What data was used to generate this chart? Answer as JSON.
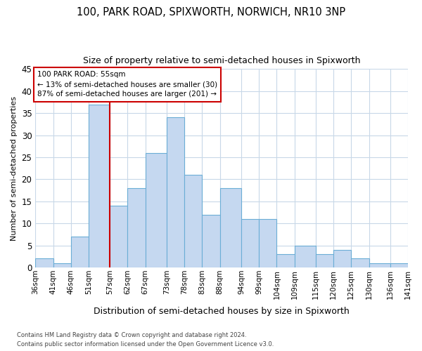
{
  "title1": "100, PARK ROAD, SPIXWORTH, NORWICH, NR10 3NP",
  "title2": "Size of property relative to semi-detached houses in Spixworth",
  "xlabel": "Distribution of semi-detached houses by size in Spixworth",
  "ylabel": "Number of semi-detached properties",
  "bin_labels": [
    "36sqm",
    "41sqm",
    "46sqm",
    "51sqm",
    "57sqm",
    "62sqm",
    "67sqm",
    "73sqm",
    "78sqm",
    "83sqm",
    "88sqm",
    "94sqm",
    "99sqm",
    "104sqm",
    "109sqm",
    "115sqm",
    "120sqm",
    "125sqm",
    "130sqm",
    "136sqm",
    "141sqm"
  ],
  "bin_edges": [
    36,
    41,
    46,
    51,
    57,
    62,
    67,
    73,
    78,
    83,
    88,
    94,
    99,
    104,
    109,
    115,
    120,
    125,
    130,
    136,
    141
  ],
  "bar_heights": [
    2,
    1,
    7,
    37,
    14,
    18,
    26,
    34,
    21,
    12,
    18,
    11,
    11,
    3,
    5,
    3,
    4,
    2,
    1,
    1
  ],
  "bar_color": "#C5D8F0",
  "bar_edge_color": "#6BAED6",
  "property_size": 57,
  "pct_smaller": 13,
  "pct_larger": 87,
  "n_smaller": 30,
  "n_larger": 201,
  "redline_color": "#CC0000",
  "annotation_box_color": "#FFFFFF",
  "annotation_box_edge": "#CC0000",
  "grid_color": "#C8D8E8",
  "background_color": "#FFFFFF",
  "ylim": [
    0,
    45
  ],
  "yticks": [
    0,
    5,
    10,
    15,
    20,
    25,
    30,
    35,
    40,
    45
  ],
  "footer1": "Contains HM Land Registry data © Crown copyright and database right 2024.",
  "footer2": "Contains public sector information licensed under the Open Government Licence v3.0."
}
